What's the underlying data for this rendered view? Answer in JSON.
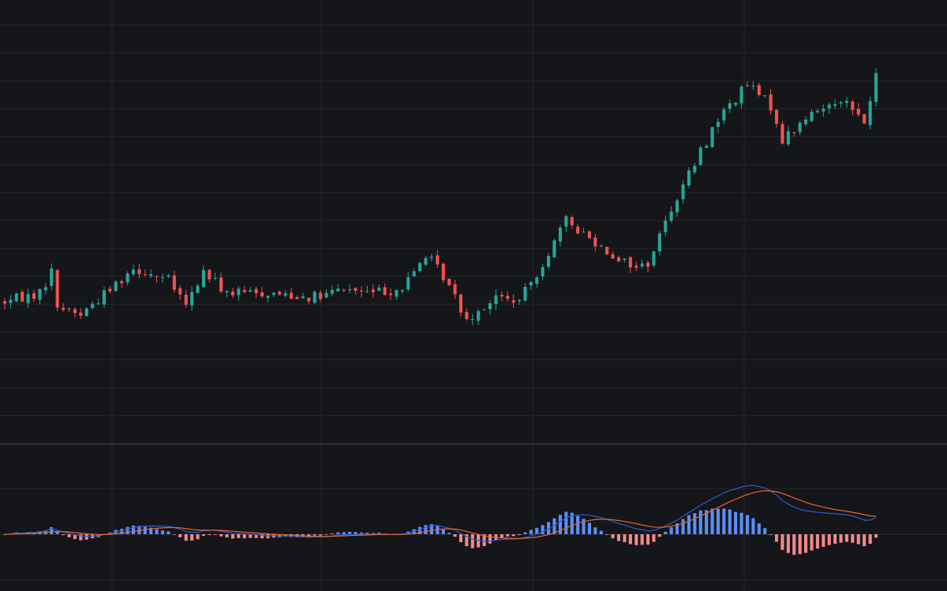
{
  "theme": {
    "background": "#151619",
    "grid": "#24262c",
    "separator": "#3a3c42",
    "up": "#26a69a",
    "down": "#ef5350",
    "hist_up": "#5b8ff9",
    "hist_down": "#f08a8a",
    "macd_line": "#2f5bd3",
    "signal_line": "#e8662f"
  },
  "chart_data": [
    {
      "type": "candlestick",
      "title": "",
      "xlabel": "",
      "ylabel": "",
      "grid": true,
      "legend": "none",
      "ylim": [
        0,
        100
      ],
      "generator": {
        "count": 150,
        "seed": 7,
        "anchors": [
          [
            0,
            31
          ],
          [
            6,
            33
          ],
          [
            8,
            38
          ],
          [
            9,
            30
          ],
          [
            13,
            28
          ],
          [
            18,
            34
          ],
          [
            22,
            39
          ],
          [
            28,
            36
          ],
          [
            31,
            30
          ],
          [
            34,
            38
          ],
          [
            38,
            33
          ],
          [
            45,
            33
          ],
          [
            54,
            32
          ],
          [
            58,
            34
          ],
          [
            62,
            33
          ],
          [
            68,
            34
          ],
          [
            72,
            42
          ],
          [
            75,
            37
          ],
          [
            79,
            27
          ],
          [
            84,
            32
          ],
          [
            88,
            31
          ],
          [
            92,
            40
          ],
          [
            96,
            50
          ],
          [
            100,
            46
          ],
          [
            104,
            42
          ],
          [
            108,
            39
          ],
          [
            110,
            40
          ],
          [
            114,
            53
          ],
          [
            122,
            74
          ],
          [
            127,
            82
          ],
          [
            131,
            77
          ],
          [
            133,
            69
          ],
          [
            138,
            75
          ],
          [
            143,
            79
          ],
          [
            147,
            73
          ],
          [
            150,
            89
          ],
          [
            152,
            92
          ]
        ]
      }
    },
    {
      "type": "macd",
      "title": "",
      "series": [
        {
          "kind": "histogram"
        },
        {
          "kind": "line",
          "role": "macd"
        },
        {
          "kind": "line",
          "role": "signal"
        }
      ],
      "fast": 12,
      "slow": 26,
      "signal": 9,
      "zero_line": true
    }
  ]
}
